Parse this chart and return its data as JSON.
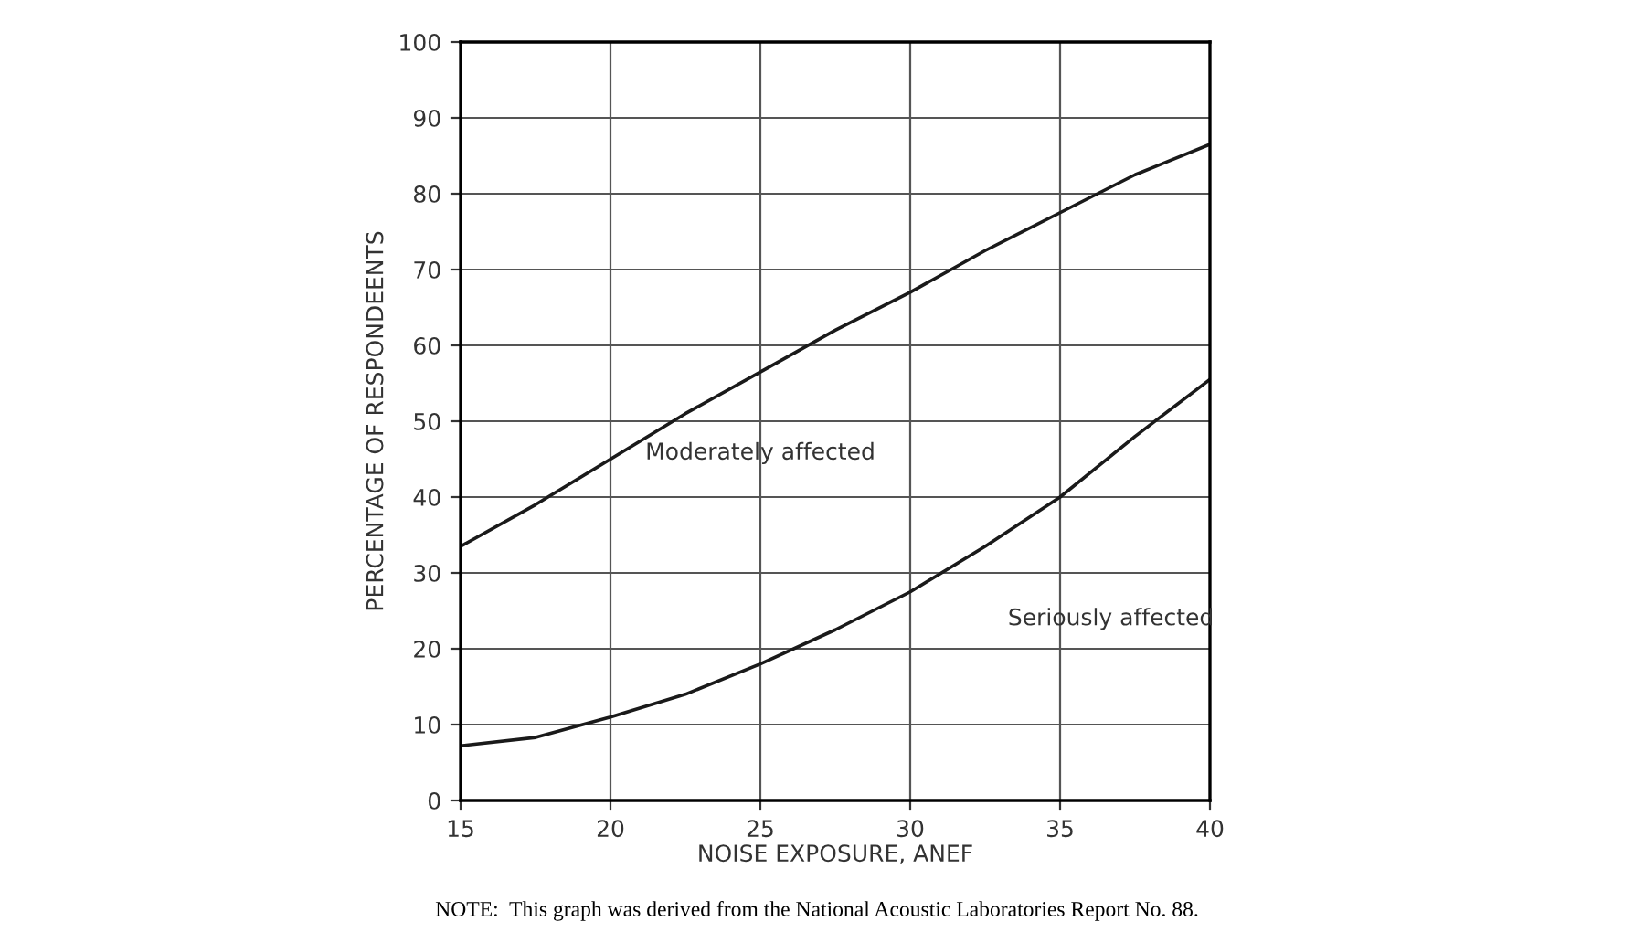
{
  "chart_data": {
    "type": "line",
    "xlabel": "NOISE EXPOSURE, ANEF",
    "ylabel": "PERCENTAGE OF RESPONDEENTS",
    "xlim": [
      15,
      40
    ],
    "xticks": [
      15,
      20,
      25,
      30,
      35,
      40
    ],
    "ylim": [
      0,
      100
    ],
    "yticks": [
      0,
      10,
      20,
      30,
      40,
      50,
      60,
      70,
      80,
      90,
      100
    ],
    "grid": true,
    "marker": "none",
    "line_style": "solid",
    "x": [
      15,
      17.5,
      20,
      22.5,
      25,
      27.5,
      30,
      32.5,
      35,
      37.5,
      40
    ],
    "series": [
      {
        "name": "Moderately affected",
        "color": "#1a1a1a",
        "values": [
          33.5,
          39,
          45,
          51,
          56.5,
          62,
          67,
          72.5,
          77.5,
          82.5,
          86.5
        ]
      },
      {
        "name": "Seriously affected",
        "color": "#1a1a1a",
        "values": [
          7.2,
          8.3,
          11,
          14,
          18,
          22.5,
          27.5,
          33.5,
          40,
          48,
          55.5
        ]
      }
    ],
    "annotations": [
      "NOTE:  This graph was derived from the National Acoustic Laboratories Report No. 88."
    ]
  }
}
